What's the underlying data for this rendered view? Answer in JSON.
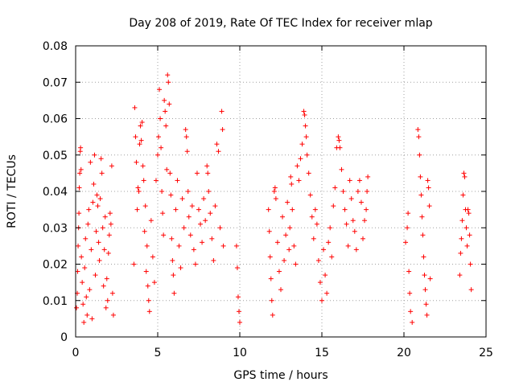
{
  "chart_data": {
    "type": "scatter",
    "title": "Day 208 of 2019, Rate Of TEC Index for receiver mlap",
    "xlabel": "GPS time / hours",
    "ylabel": "ROTI / TECUs",
    "xlim": [
      0,
      25
    ],
    "ylim": [
      0,
      0.08
    ],
    "xticks": [
      0,
      5,
      10,
      15,
      20,
      25
    ],
    "xtick_labels": [
      "0",
      "5",
      "10",
      "15",
      "20",
      "25"
    ],
    "yticks": [
      0,
      0.01,
      0.02,
      0.03,
      0.04,
      0.05,
      0.06,
      0.07,
      0.08
    ],
    "ytick_labels": [
      "0",
      "0.01",
      "0.02",
      "0.03",
      "0.04",
      "0.05",
      "0.06",
      "0.07",
      "0.08"
    ],
    "grid": true,
    "marker": "+",
    "series": [
      {
        "name": "ROTI",
        "color": "#ff0000",
        "points": [
          [
            0.05,
            0.008
          ],
          [
            0.1,
            0.012
          ],
          [
            0.12,
            0.018
          ],
          [
            0.15,
            0.025
          ],
          [
            0.18,
            0.03
          ],
          [
            0.2,
            0.034
          ],
          [
            0.22,
            0.041
          ],
          [
            0.25,
            0.045
          ],
          [
            0.28,
            0.051
          ],
          [
            0.3,
            0.052
          ],
          [
            0.33,
            0.046
          ],
          [
            0.35,
            0.022
          ],
          [
            0.4,
            0.015
          ],
          [
            0.45,
            0.009
          ],
          [
            0.5,
            0.004
          ],
          [
            0.55,
            0.019
          ],
          [
            0.6,
            0.027
          ],
          [
            0.65,
            0.011
          ],
          [
            0.7,
            0.006
          ],
          [
            0.75,
            0.031
          ],
          [
            0.8,
            0.035
          ],
          [
            0.85,
            0.013
          ],
          [
            0.9,
            0.048
          ],
          [
            0.95,
            0.024
          ],
          [
            1.0,
            0.005
          ],
          [
            1.05,
            0.037
          ],
          [
            1.1,
            0.042
          ],
          [
            1.15,
            0.05
          ],
          [
            1.2,
            0.017
          ],
          [
            1.25,
            0.029
          ],
          [
            1.3,
            0.039
          ],
          [
            1.35,
            0.036
          ],
          [
            1.4,
            0.026
          ],
          [
            1.45,
            0.021
          ],
          [
            1.5,
            0.038
          ],
          [
            1.55,
            0.049
          ],
          [
            1.6,
            0.045
          ],
          [
            1.65,
            0.03
          ],
          [
            1.7,
            0.014
          ],
          [
            1.75,
            0.024
          ],
          [
            1.8,
            0.033
          ],
          [
            1.85,
            0.008
          ],
          [
            1.9,
            0.016
          ],
          [
            1.95,
            0.01
          ],
          [
            2.0,
            0.023
          ],
          [
            2.05,
            0.028
          ],
          [
            2.1,
            0.034
          ],
          [
            2.15,
            0.031
          ],
          [
            2.2,
            0.047
          ],
          [
            2.25,
            0.012
          ],
          [
            2.3,
            0.006
          ],
          [
            3.55,
            0.02
          ],
          [
            3.6,
            0.063
          ],
          [
            3.65,
            0.055
          ],
          [
            3.7,
            0.048
          ],
          [
            3.75,
            0.035
          ],
          [
            3.8,
            0.041
          ],
          [
            3.85,
            0.04
          ],
          [
            3.9,
            0.053
          ],
          [
            3.95,
            0.058
          ],
          [
            4.0,
            0.054
          ],
          [
            4.05,
            0.059
          ],
          [
            4.1,
            0.047
          ],
          [
            4.15,
            0.043
          ],
          [
            4.2,
            0.029
          ],
          [
            4.25,
            0.036
          ],
          [
            4.3,
            0.018
          ],
          [
            4.35,
            0.025
          ],
          [
            4.4,
            0.014
          ],
          [
            4.45,
            0.01
          ],
          [
            4.5,
            0.007
          ],
          [
            4.6,
            0.032
          ],
          [
            4.7,
            0.022
          ],
          [
            4.8,
            0.015
          ],
          [
            4.9,
            0.043
          ],
          [
            5.0,
            0.05
          ],
          [
            5.05,
            0.055
          ],
          [
            5.1,
            0.068
          ],
          [
            5.15,
            0.06
          ],
          [
            5.2,
            0.052
          ],
          [
            5.25,
            0.04
          ],
          [
            5.3,
            0.034
          ],
          [
            5.35,
            0.028
          ],
          [
            5.4,
            0.065
          ],
          [
            5.45,
            0.062
          ],
          [
            5.5,
            0.058
          ],
          [
            5.55,
            0.046
          ],
          [
            5.6,
            0.072
          ],
          [
            5.65,
            0.07
          ],
          [
            5.7,
            0.064
          ],
          [
            5.75,
            0.045
          ],
          [
            5.8,
            0.039
          ],
          [
            5.85,
            0.027
          ],
          [
            5.9,
            0.021
          ],
          [
            5.95,
            0.017
          ],
          [
            6.0,
            0.012
          ],
          [
            6.1,
            0.035
          ],
          [
            6.2,
            0.043
          ],
          [
            6.3,
            0.025
          ],
          [
            6.4,
            0.019
          ],
          [
            6.5,
            0.038
          ],
          [
            6.6,
            0.03
          ],
          [
            6.7,
            0.057
          ],
          [
            6.75,
            0.055
          ],
          [
            6.8,
            0.051
          ],
          [
            6.85,
            0.04
          ],
          [
            6.9,
            0.033
          ],
          [
            7.0,
            0.028
          ],
          [
            7.1,
            0.036
          ],
          [
            7.2,
            0.024
          ],
          [
            7.3,
            0.02
          ],
          [
            7.4,
            0.045
          ],
          [
            7.5,
            0.035
          ],
          [
            7.6,
            0.031
          ],
          [
            7.7,
            0.026
          ],
          [
            7.8,
            0.038
          ],
          [
            7.9,
            0.032
          ],
          [
            8.0,
            0.047
          ],
          [
            8.05,
            0.045
          ],
          [
            8.1,
            0.04
          ],
          [
            8.2,
            0.034
          ],
          [
            8.3,
            0.027
          ],
          [
            8.4,
            0.021
          ],
          [
            8.5,
            0.036
          ],
          [
            8.6,
            0.053
          ],
          [
            8.7,
            0.051
          ],
          [
            8.8,
            0.03
          ],
          [
            8.9,
            0.062
          ],
          [
            8.95,
            0.057
          ],
          [
            9.0,
            0.025
          ],
          [
            9.8,
            0.025
          ],
          [
            9.85,
            0.019
          ],
          [
            9.9,
            0.011
          ],
          [
            9.95,
            0.007
          ],
          [
            10.0,
            0.004
          ],
          [
            11.75,
            0.035
          ],
          [
            11.8,
            0.029
          ],
          [
            11.85,
            0.022
          ],
          [
            11.9,
            0.016
          ],
          [
            11.95,
            0.01
          ],
          [
            12.0,
            0.006
          ],
          [
            12.1,
            0.04
          ],
          [
            12.15,
            0.041
          ],
          [
            12.2,
            0.038
          ],
          [
            12.3,
            0.026
          ],
          [
            12.4,
            0.018
          ],
          [
            12.5,
            0.013
          ],
          [
            12.6,
            0.033
          ],
          [
            12.7,
            0.021
          ],
          [
            12.8,
            0.028
          ],
          [
            12.9,
            0.037
          ],
          [
            13.0,
            0.024
          ],
          [
            13.05,
            0.03
          ],
          [
            13.1,
            0.044
          ],
          [
            13.15,
            0.042
          ],
          [
            13.2,
            0.035
          ],
          [
            13.3,
            0.025
          ],
          [
            13.4,
            0.02
          ],
          [
            13.5,
            0.047
          ],
          [
            13.6,
            0.043
          ],
          [
            13.7,
            0.049
          ],
          [
            13.8,
            0.053
          ],
          [
            13.9,
            0.062
          ],
          [
            13.95,
            0.061
          ],
          [
            14.0,
            0.058
          ],
          [
            14.05,
            0.055
          ],
          [
            14.1,
            0.05
          ],
          [
            14.2,
            0.045
          ],
          [
            14.3,
            0.039
          ],
          [
            14.4,
            0.033
          ],
          [
            14.5,
            0.027
          ],
          [
            14.6,
            0.035
          ],
          [
            14.7,
            0.031
          ],
          [
            14.8,
            0.021
          ],
          [
            14.9,
            0.015
          ],
          [
            15.0,
            0.01
          ],
          [
            15.1,
            0.024
          ],
          [
            15.2,
            0.017
          ],
          [
            15.3,
            0.012
          ],
          [
            15.4,
            0.026
          ],
          [
            15.5,
            0.03
          ],
          [
            15.6,
            0.022
          ],
          [
            15.7,
            0.036
          ],
          [
            15.8,
            0.041
          ],
          [
            15.9,
            0.052
          ],
          [
            16.0,
            0.055
          ],
          [
            16.05,
            0.054
          ],
          [
            16.1,
            0.052
          ],
          [
            16.2,
            0.046
          ],
          [
            16.3,
            0.04
          ],
          [
            16.4,
            0.035
          ],
          [
            16.5,
            0.031
          ],
          [
            16.6,
            0.025
          ],
          [
            16.7,
            0.043
          ],
          [
            16.8,
            0.038
          ],
          [
            16.9,
            0.032
          ],
          [
            17.0,
            0.029
          ],
          [
            17.1,
            0.024
          ],
          [
            17.2,
            0.04
          ],
          [
            17.3,
            0.043
          ],
          [
            17.4,
            0.037
          ],
          [
            17.5,
            0.027
          ],
          [
            17.6,
            0.032
          ],
          [
            17.7,
            0.035
          ],
          [
            17.75,
            0.04
          ],
          [
            17.8,
            0.044
          ],
          [
            20.1,
            0.026
          ],
          [
            20.2,
            0.03
          ],
          [
            20.25,
            0.034
          ],
          [
            20.3,
            0.018
          ],
          [
            20.35,
            0.012
          ],
          [
            20.4,
            0.007
          ],
          [
            20.5,
            0.004
          ],
          [
            20.85,
            0.057
          ],
          [
            20.9,
            0.055
          ],
          [
            20.95,
            0.05
          ],
          [
            21.0,
            0.044
          ],
          [
            21.05,
            0.039
          ],
          [
            21.1,
            0.033
          ],
          [
            21.15,
            0.028
          ],
          [
            21.2,
            0.022
          ],
          [
            21.25,
            0.017
          ],
          [
            21.3,
            0.013
          ],
          [
            21.35,
            0.009
          ],
          [
            21.4,
            0.006
          ],
          [
            21.45,
            0.043
          ],
          [
            21.5,
            0.041
          ],
          [
            21.55,
            0.036
          ],
          [
            21.6,
            0.016
          ],
          [
            23.4,
            0.017
          ],
          [
            23.45,
            0.023
          ],
          [
            23.5,
            0.027
          ],
          [
            23.55,
            0.032
          ],
          [
            23.6,
            0.039
          ],
          [
            23.65,
            0.045
          ],
          [
            23.7,
            0.044
          ],
          [
            23.75,
            0.035
          ],
          [
            23.8,
            0.03
          ],
          [
            23.85,
            0.025
          ],
          [
            23.9,
            0.035
          ],
          [
            23.95,
            0.034
          ],
          [
            24.0,
            0.028
          ],
          [
            24.05,
            0.02
          ],
          [
            24.1,
            0.013
          ]
        ]
      }
    ]
  }
}
